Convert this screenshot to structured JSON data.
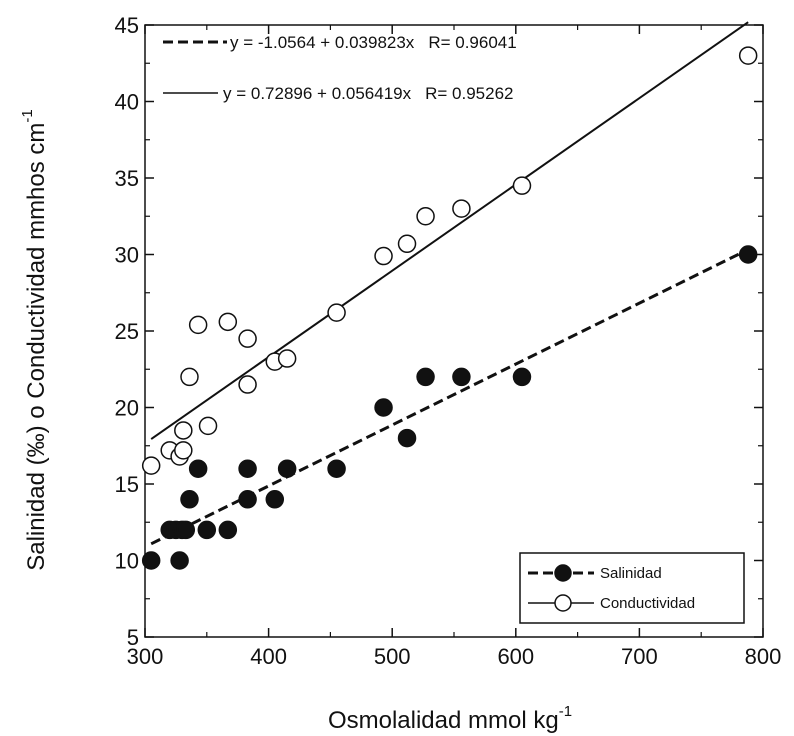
{
  "chart_data": {
    "type": "scatter",
    "xlabel": "Osmolalidad mmol kg",
    "xlabel_sup": "-1",
    "ylabel": "Salinidad (‰) o Conductividad mmhos cm",
    "ylabel_sup": "-1",
    "xlim": [
      300,
      800
    ],
    "ylim": [
      5,
      45
    ],
    "xticks": [
      "300",
      "400",
      "500",
      "600",
      "700",
      "800"
    ],
    "yticks": [
      "5",
      "10",
      "15",
      "20",
      "25",
      "30",
      "35",
      "40",
      "45"
    ],
    "grid": false,
    "legend_position": "bottom-right",
    "series": [
      {
        "name": "Salinidad",
        "marker": "filled-circle",
        "line": "dashed",
        "fit": {
          "intercept": -1.0564,
          "slope": 0.039823,
          "x_range": [
            305,
            788
          ]
        },
        "equation": "y = -1.0564 + 0.039823x",
        "r_label": "R= 0.96041",
        "points": [
          [
            305,
            10
          ],
          [
            320,
            12
          ],
          [
            325,
            12
          ],
          [
            328,
            10
          ],
          [
            330,
            12
          ],
          [
            333,
            12
          ],
          [
            336,
            14
          ],
          [
            343,
            16
          ],
          [
            350,
            12
          ],
          [
            367,
            12
          ],
          [
            383,
            16
          ],
          [
            383,
            14
          ],
          [
            405,
            14
          ],
          [
            415,
            16
          ],
          [
            455,
            16
          ],
          [
            493,
            20
          ],
          [
            512,
            18
          ],
          [
            527,
            22
          ],
          [
            556,
            22
          ],
          [
            605,
            22
          ],
          [
            788,
            30
          ]
        ]
      },
      {
        "name": "Conductividad",
        "marker": "open-circle",
        "line": "solid",
        "fit": {
          "intercept": 0.72896,
          "slope": 0.056419,
          "x_range": [
            305,
            788
          ]
        },
        "equation": "y = 0.72896 + 0.056419x",
        "r_label": "R= 0.95262",
        "points": [
          [
            305,
            16.2
          ],
          [
            320,
            17.2
          ],
          [
            328,
            16.8
          ],
          [
            331,
            17.2
          ],
          [
            331,
            18.5
          ],
          [
            336,
            22
          ],
          [
            343,
            25.4
          ],
          [
            351,
            18.8
          ],
          [
            367,
            25.6
          ],
          [
            383,
            24.5
          ],
          [
            383,
            21.5
          ],
          [
            405,
            23
          ],
          [
            415,
            23.2
          ],
          [
            455,
            26.2
          ],
          [
            493,
            29.9
          ],
          [
            512,
            30.7
          ],
          [
            527,
            32.5
          ],
          [
            556,
            33
          ],
          [
            605,
            34.5
          ],
          [
            788,
            43
          ]
        ]
      }
    ]
  }
}
